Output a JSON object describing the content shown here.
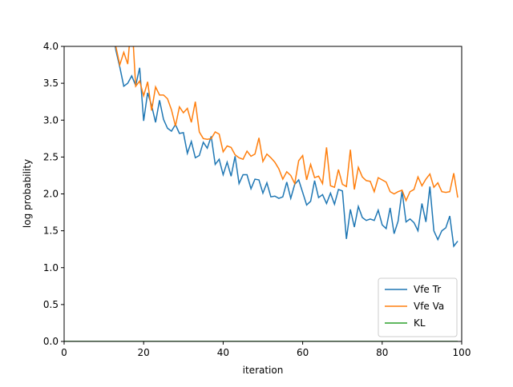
{
  "chart_data": {
    "type": "line",
    "x": [
      0,
      1,
      2,
      3,
      4,
      5,
      6,
      7,
      8,
      9,
      10,
      11,
      12,
      13,
      14,
      15,
      16,
      17,
      18,
      19,
      20,
      21,
      22,
      23,
      24,
      25,
      26,
      27,
      28,
      29,
      30,
      31,
      32,
      33,
      34,
      35,
      36,
      37,
      38,
      39,
      40,
      41,
      42,
      43,
      44,
      45,
      46,
      47,
      48,
      49,
      50,
      51,
      52,
      53,
      54,
      55,
      56,
      57,
      58,
      59,
      60,
      61,
      62,
      63,
      64,
      65,
      66,
      67,
      68,
      69,
      70,
      71,
      72,
      73,
      74,
      75,
      76,
      77,
      78,
      79,
      80,
      81,
      82,
      83,
      84,
      85,
      86,
      87,
      88,
      89,
      90,
      91,
      92,
      93,
      94,
      95,
      96,
      97,
      98,
      99
    ],
    "series": [
      {
        "name": "Vfe Tr",
        "color": "#1f77b4",
        "values": [
          null,
          null,
          null,
          null,
          null,
          null,
          null,
          null,
          null,
          null,
          null,
          null,
          4.3,
          3.95,
          3.72,
          3.46,
          3.5,
          3.6,
          3.47,
          3.71,
          2.99,
          3.37,
          3.2,
          2.97,
          3.27,
          3.01,
          2.89,
          2.85,
          2.94,
          2.82,
          2.83,
          2.55,
          2.71,
          2.49,
          2.52,
          2.7,
          2.62,
          2.78,
          2.4,
          2.47,
          2.26,
          2.43,
          2.24,
          2.51,
          2.14,
          2.26,
          2.26,
          2.07,
          2.2,
          2.19,
          2.01,
          2.15,
          1.96,
          1.97,
          1.94,
          1.96,
          2.16,
          1.94,
          2.13,
          2.19,
          2.02,
          1.85,
          1.9,
          2.18,
          1.95,
          1.99,
          1.87,
          2.01,
          1.86,
          2.06,
          2.04,
          1.39,
          1.79,
          1.55,
          1.83,
          1.68,
          1.64,
          1.66,
          1.64,
          1.78,
          1.58,
          1.53,
          1.81,
          1.46,
          1.63,
          2.04,
          1.62,
          1.66,
          1.61,
          1.5,
          1.87,
          1.62,
          2.1,
          1.5,
          1.38,
          1.5,
          1.54,
          1.7,
          1.29,
          1.36
        ]
      },
      {
        "name": "Vfe Va",
        "color": "#ff7f0e",
        "values": [
          null,
          null,
          null,
          null,
          null,
          null,
          null,
          null,
          null,
          null,
          null,
          null,
          4.6,
          4.0,
          3.75,
          3.92,
          3.76,
          4.4,
          3.46,
          3.53,
          3.33,
          3.52,
          3.13,
          3.45,
          3.34,
          3.34,
          3.29,
          3.14,
          2.92,
          3.18,
          3.1,
          3.16,
          2.97,
          3.25,
          2.84,
          2.75,
          2.74,
          2.75,
          2.84,
          2.81,
          2.57,
          2.65,
          2.63,
          2.53,
          2.49,
          2.47,
          2.58,
          2.51,
          2.54,
          2.76,
          2.44,
          2.54,
          2.49,
          2.43,
          2.34,
          2.2,
          2.3,
          2.25,
          2.14,
          2.45,
          2.52,
          2.19,
          2.4,
          2.22,
          2.24,
          2.14,
          2.63,
          2.11,
          2.09,
          2.33,
          2.13,
          2.1,
          2.6,
          2.06,
          2.36,
          2.23,
          2.18,
          2.17,
          2.03,
          2.22,
          2.19,
          2.16,
          2.03,
          2.0,
          2.03,
          2.05,
          1.91,
          2.03,
          2.06,
          2.23,
          2.11,
          2.2,
          2.27,
          2.09,
          2.15,
          2.03,
          2.02,
          2.03,
          2.28,
          1.95
        ]
      },
      {
        "name": "KL",
        "color": "#2ca02c",
        "values": [
          0,
          0,
          0,
          0,
          0,
          0,
          0,
          0,
          0,
          0,
          0,
          0,
          0,
          0,
          0,
          0,
          0,
          0,
          0,
          0,
          0,
          0,
          0,
          0,
          0,
          0,
          0,
          0,
          0,
          0,
          0,
          0,
          0,
          0,
          0,
          0,
          0,
          0,
          0,
          0,
          0,
          0,
          0,
          0,
          0,
          0,
          0,
          0,
          0,
          0,
          0,
          0,
          0,
          0,
          0,
          0,
          0,
          0,
          0,
          0,
          0,
          0,
          0,
          0,
          0,
          0,
          0,
          0,
          0,
          0,
          0,
          0,
          0,
          0,
          0,
          0,
          0,
          0,
          0,
          0,
          0,
          0,
          0,
          0,
          0,
          0,
          0,
          0,
          0,
          0,
          0,
          0,
          0,
          0,
          0,
          0,
          0,
          0,
          0,
          0
        ]
      }
    ],
    "xlabel": "iteration",
    "ylabel": "log probability",
    "xlim": [
      0,
      100
    ],
    "xticks": [
      0,
      20,
      40,
      60,
      80,
      100
    ],
    "ylim": [
      0,
      4
    ],
    "yticks": [
      {
        "value": 0,
        "label": "0.0"
      },
      {
        "value": 0.5,
        "label": "0.5"
      },
      {
        "value": 1,
        "label": "1.0"
      },
      {
        "value": 1.5,
        "label": "1.5"
      },
      {
        "value": 2,
        "label": "2.0"
      },
      {
        "value": 2.5,
        "label": "2.5"
      },
      {
        "value": 3,
        "label": "3.0"
      },
      {
        "value": 3.5,
        "label": "3.5"
      },
      {
        "value": 4,
        "label": "4.0"
      }
    ],
    "legend": "lower right"
  }
}
